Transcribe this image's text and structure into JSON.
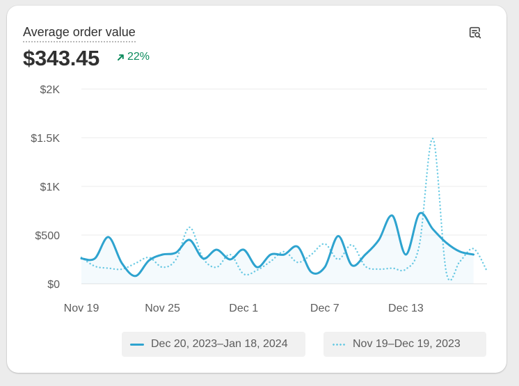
{
  "metric": {
    "title": "Average order value",
    "value": "$343.45",
    "change": "22%",
    "change_direction": "up",
    "change_color": "#0b8a5c",
    "explore_icon": "explore-data-icon"
  },
  "legend": {
    "current": "Dec 20, 2023–Jan 18, 2024",
    "previous": "Nov 19–Dec 19, 2023"
  },
  "chart_data": {
    "type": "line",
    "title": "",
    "xlabel": "",
    "ylabel": "",
    "ylim": [
      0,
      2000
    ],
    "y_ticks": [
      0,
      500,
      1000,
      1500,
      2000
    ],
    "y_tick_labels": [
      "$0",
      "$500",
      "$1K",
      "$1.5K",
      "$2K"
    ],
    "x_tick_labels": [
      "Nov 19",
      "Nov 25",
      "Dec 1",
      "Dec 7",
      "Dec 13"
    ],
    "x_tick_positions": [
      0,
      6,
      12,
      18,
      24
    ],
    "grid": true,
    "legend_position": "bottom",
    "series": [
      {
        "name": "Dec 20, 2023–Jan 18, 2024",
        "style": "solid",
        "color": "#2ea3cf",
        "x": [
          0,
          1,
          2,
          3,
          4,
          5,
          6,
          7,
          8,
          9,
          10,
          11,
          12,
          13,
          14,
          15,
          16,
          17,
          18,
          19,
          20,
          21,
          22,
          23,
          24,
          25,
          26,
          27,
          28,
          29
        ],
        "values": [
          260,
          260,
          480,
          210,
          80,
          240,
          300,
          320,
          450,
          260,
          350,
          250,
          350,
          170,
          300,
          300,
          380,
          120,
          170,
          490,
          190,
          300,
          450,
          700,
          300,
          720,
          560,
          420,
          330,
          300
        ]
      },
      {
        "name": "Nov 19–Dec 19, 2023",
        "style": "dotted",
        "color": "#6ccbe4",
        "x": [
          0,
          1,
          2,
          3,
          4,
          5,
          6,
          7,
          8,
          9,
          10,
          11,
          12,
          13,
          14,
          15,
          16,
          17,
          18,
          19,
          20,
          21,
          22,
          23,
          24,
          25,
          26,
          27,
          28,
          29,
          30
        ],
        "values": [
          270,
          180,
          160,
          150,
          210,
          270,
          170,
          250,
          580,
          260,
          170,
          300,
          100,
          140,
          230,
          330,
          220,
          300,
          410,
          250,
          400,
          180,
          150,
          160,
          150,
          400,
          1490,
          110,
          230,
          360,
          130
        ]
      }
    ]
  }
}
